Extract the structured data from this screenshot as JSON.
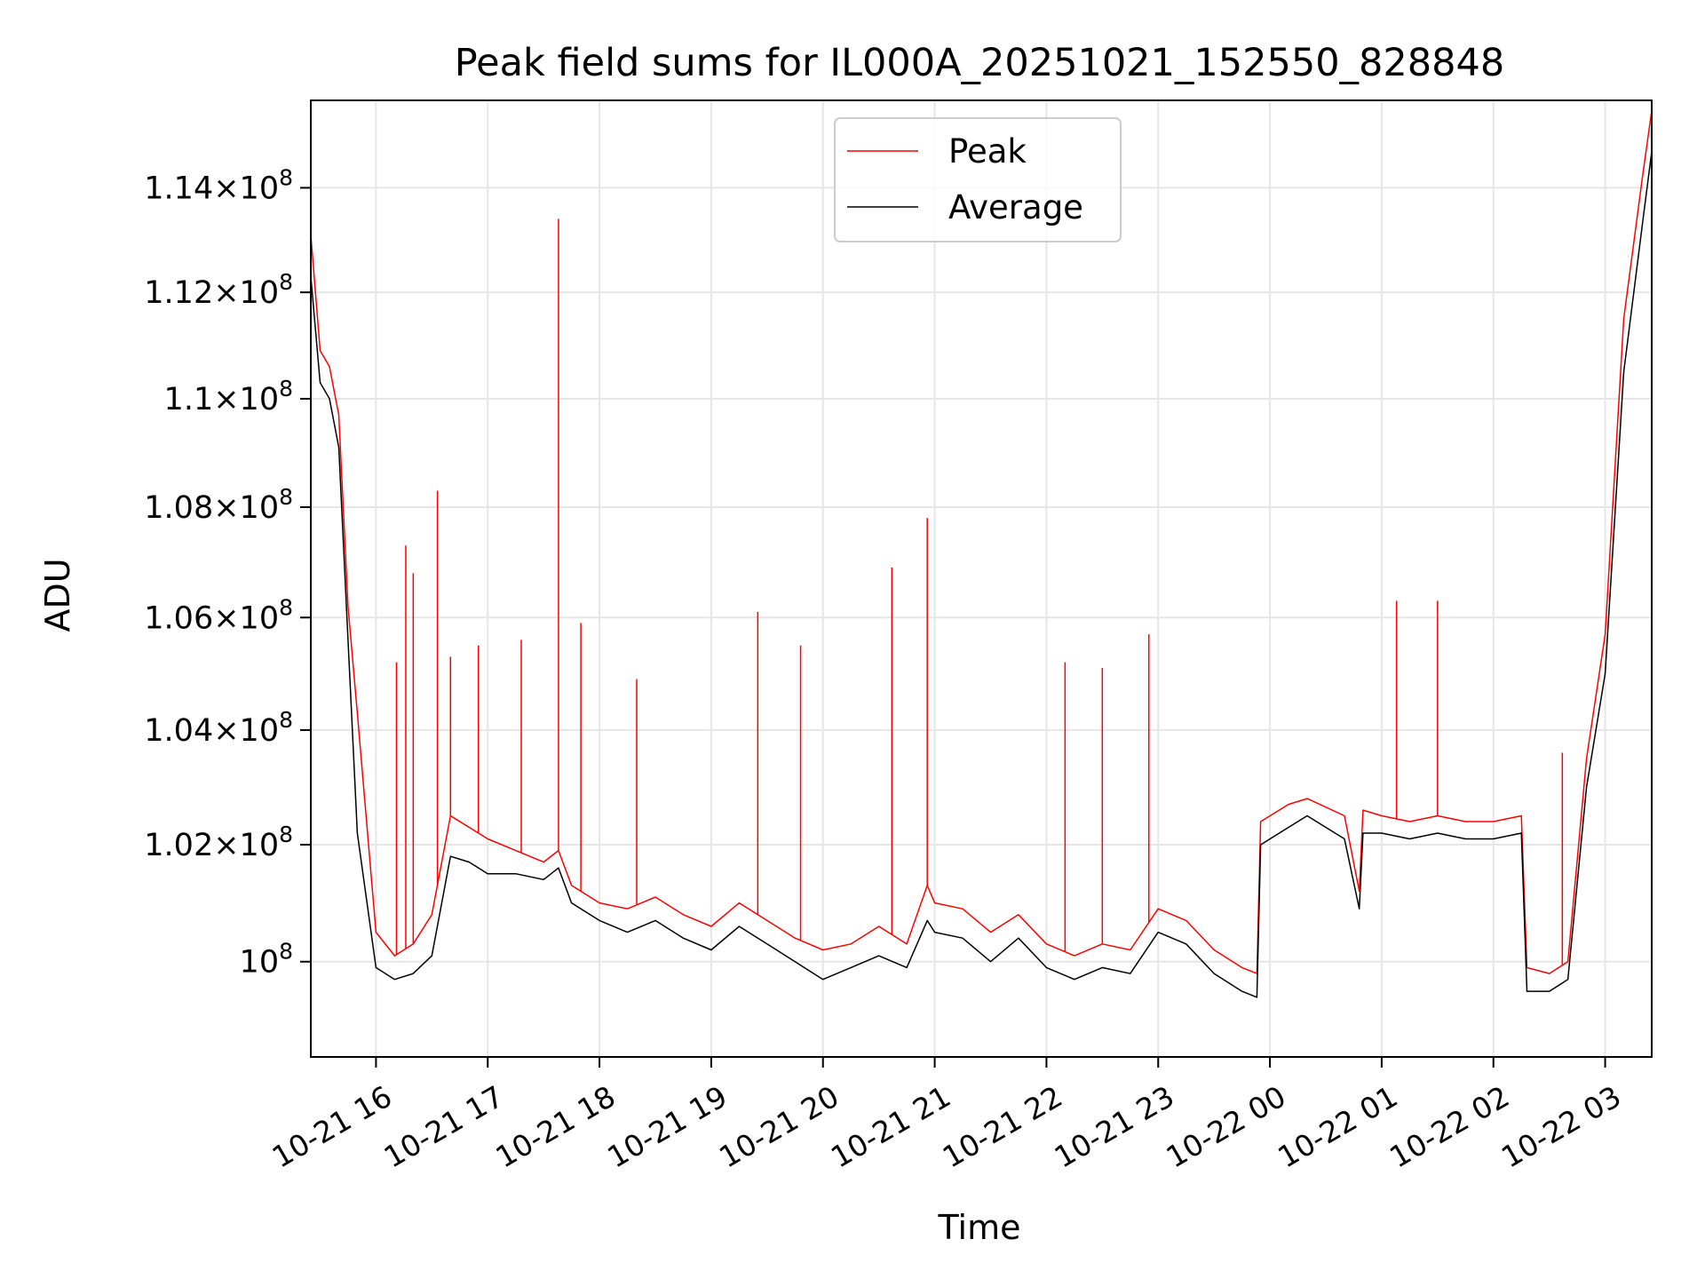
{
  "chart_data": {
    "type": "line",
    "title": "Peak field sums for IL000A_20251021_152550_828848",
    "xlabel": "Time",
    "ylabel": "ADU",
    "x_ticks": [
      "10-21 16",
      "10-21 17",
      "10-21 18",
      "10-21 19",
      "10-21 20",
      "10-21 21",
      "10-21 22",
      "10-21 23",
      "10-22 00",
      "10-22 01",
      "10-22 02",
      "10-22 03"
    ],
    "x_tick_times": [
      "2025-10-21T16:00",
      "2025-10-21T17:00",
      "2025-10-21T18:00",
      "2025-10-21T19:00",
      "2025-10-21T20:00",
      "2025-10-21T21:00",
      "2025-10-21T22:00",
      "2025-10-21T23:00",
      "2025-10-22T00:00",
      "2025-10-22T01:00",
      "2025-10-22T02:00",
      "2025-10-22T03:00"
    ],
    "xlim": [
      "2025-10-21T15:25",
      "2025-10-22T03:25"
    ],
    "y_ticks": [
      {
        "value": 100000000,
        "base": "10",
        "exp": "8",
        "mant": ""
      },
      {
        "value": 102000000,
        "base": "10",
        "exp": "8",
        "mant": "1.02×"
      },
      {
        "value": 104000000,
        "base": "10",
        "exp": "8",
        "mant": "1.04×"
      },
      {
        "value": 106000000,
        "base": "10",
        "exp": "8",
        "mant": "1.06×"
      },
      {
        "value": 108000000,
        "base": "10",
        "exp": "8",
        "mant": "1.08×"
      },
      {
        "value": 110000000,
        "base": "10",
        "exp": "8",
        "mant": "1.1×"
      },
      {
        "value": 112000000,
        "base": "10",
        "exp": "8",
        "mant": "1.12×"
      },
      {
        "value": 114000000,
        "base": "10",
        "exp": "8",
        "mant": "1.14×"
      }
    ],
    "ylim": [
      98400000,
      115700000
    ],
    "yscale": "log",
    "grid": true,
    "legend_position": "upper center",
    "series": [
      {
        "name": "Peak",
        "color": "#ff0000",
        "x": [
          "2025-10-21T15:25",
          "2025-10-21T15:30",
          "2025-10-21T15:35",
          "2025-10-21T15:40",
          "2025-10-21T15:45",
          "2025-10-21T15:50",
          "2025-10-21T16:00",
          "2025-10-21T16:10",
          "2025-10-21T16:20",
          "2025-10-21T16:30",
          "2025-10-21T16:40",
          "2025-10-21T16:50",
          "2025-10-21T17:00",
          "2025-10-21T17:15",
          "2025-10-21T17:30",
          "2025-10-21T17:38",
          "2025-10-21T17:45",
          "2025-10-21T18:00",
          "2025-10-21T18:15",
          "2025-10-21T18:30",
          "2025-10-21T18:45",
          "2025-10-21T19:00",
          "2025-10-21T19:15",
          "2025-10-21T19:30",
          "2025-10-21T19:45",
          "2025-10-21T20:00",
          "2025-10-21T20:15",
          "2025-10-21T20:30",
          "2025-10-21T20:45",
          "2025-10-21T20:56",
          "2025-10-21T21:00",
          "2025-10-21T21:15",
          "2025-10-21T21:30",
          "2025-10-21T21:45",
          "2025-10-21T22:00",
          "2025-10-21T22:15",
          "2025-10-21T22:30",
          "2025-10-21T22:45",
          "2025-10-21T23:00",
          "2025-10-21T23:15",
          "2025-10-21T23:30",
          "2025-10-21T23:45",
          "2025-10-21T23:53",
          "2025-10-21T23:55",
          "2025-10-22T00:10",
          "2025-10-22T00:20",
          "2025-10-22T00:40",
          "2025-10-22T00:48",
          "2025-10-22T00:50",
          "2025-10-22T01:00",
          "2025-10-22T01:15",
          "2025-10-22T01:30",
          "2025-10-22T01:45",
          "2025-10-22T02:00",
          "2025-10-22T02:15",
          "2025-10-22T02:18",
          "2025-10-22T02:30",
          "2025-10-22T02:40",
          "2025-10-22T02:50",
          "2025-10-22T03:00",
          "2025-10-22T03:10",
          "2025-10-22T03:20",
          "2025-10-22T03:25"
        ],
        "y": [
          113100000,
          110900000,
          110600000,
          109700000,
          106200000,
          104300000,
          100500000,
          100100000,
          100300000,
          100800000,
          102500000,
          102300000,
          102100000,
          101900000,
          101700000,
          101900000,
          101300000,
          101000000,
          100900000,
          101100000,
          100800000,
          100600000,
          101000000,
          100700000,
          100400000,
          100200000,
          100300000,
          100600000,
          100300000,
          101300000,
          101000000,
          100900000,
          100500000,
          100800000,
          100300000,
          100100000,
          100300000,
          100200000,
          100900000,
          100700000,
          100200000,
          99900000,
          99800000,
          102400000,
          102700000,
          102800000,
          102500000,
          101200000,
          102600000,
          102500000,
          102400000,
          102500000,
          102400000,
          102400000,
          102500000,
          99900000,
          99800000,
          100000000,
          103500000,
          105700000,
          111500000,
          114200000,
          115500000
        ],
        "spikes": [
          {
            "x": "2025-10-21T16:11",
            "y": 105200000
          },
          {
            "x": "2025-10-21T16:16",
            "y": 107300000
          },
          {
            "x": "2025-10-21T16:20",
            "y": 106800000
          },
          {
            "x": "2025-10-21T16:33",
            "y": 108300000
          },
          {
            "x": "2025-10-21T16:40",
            "y": 105300000
          },
          {
            "x": "2025-10-21T16:55",
            "y": 105500000
          },
          {
            "x": "2025-10-21T17:18",
            "y": 105600000
          },
          {
            "x": "2025-10-21T17:38",
            "y": 113400000
          },
          {
            "x": "2025-10-21T17:50",
            "y": 105900000
          },
          {
            "x": "2025-10-21T18:20",
            "y": 104900000
          },
          {
            "x": "2025-10-21T19:25",
            "y": 106100000
          },
          {
            "x": "2025-10-21T19:48",
            "y": 105500000
          },
          {
            "x": "2025-10-21T20:37",
            "y": 106900000
          },
          {
            "x": "2025-10-21T20:56",
            "y": 107800000
          },
          {
            "x": "2025-10-21T22:10",
            "y": 105200000
          },
          {
            "x": "2025-10-21T22:30",
            "y": 105100000
          },
          {
            "x": "2025-10-21T22:55",
            "y": 105700000
          },
          {
            "x": "2025-10-22T01:08",
            "y": 106300000
          },
          {
            "x": "2025-10-22T01:30",
            "y": 106300000
          },
          {
            "x": "2025-10-22T02:37",
            "y": 103600000
          }
        ]
      },
      {
        "name": "Average",
        "color": "#000000",
        "x": [
          "2025-10-21T15:25",
          "2025-10-21T15:30",
          "2025-10-21T15:35",
          "2025-10-21T15:40",
          "2025-10-21T15:45",
          "2025-10-21T15:50",
          "2025-10-21T16:00",
          "2025-10-21T16:10",
          "2025-10-21T16:20",
          "2025-10-21T16:30",
          "2025-10-21T16:40",
          "2025-10-21T16:50",
          "2025-10-21T17:00",
          "2025-10-21T17:15",
          "2025-10-21T17:30",
          "2025-10-21T17:38",
          "2025-10-21T17:45",
          "2025-10-21T18:00",
          "2025-10-21T18:15",
          "2025-10-21T18:30",
          "2025-10-21T18:45",
          "2025-10-21T19:00",
          "2025-10-21T19:15",
          "2025-10-21T19:30",
          "2025-10-21T19:45",
          "2025-10-21T20:00",
          "2025-10-21T20:15",
          "2025-10-21T20:30",
          "2025-10-21T20:45",
          "2025-10-21T20:56",
          "2025-10-21T21:00",
          "2025-10-21T21:15",
          "2025-10-21T21:30",
          "2025-10-21T21:45",
          "2025-10-21T22:00",
          "2025-10-21T22:15",
          "2025-10-21T22:30",
          "2025-10-21T22:45",
          "2025-10-21T23:00",
          "2025-10-21T23:15",
          "2025-10-21T23:30",
          "2025-10-21T23:45",
          "2025-10-21T23:53",
          "2025-10-21T23:55",
          "2025-10-22T00:10",
          "2025-10-22T00:20",
          "2025-10-22T00:40",
          "2025-10-22T00:48",
          "2025-10-22T00:50",
          "2025-10-22T01:00",
          "2025-10-22T01:15",
          "2025-10-22T01:30",
          "2025-10-22T01:45",
          "2025-10-22T02:00",
          "2025-10-22T02:15",
          "2025-10-22T02:18",
          "2025-10-22T02:30",
          "2025-10-22T02:40",
          "2025-10-22T02:50",
          "2025-10-22T03:00",
          "2025-10-22T03:10",
          "2025-10-22T03:20",
          "2025-10-22T03:25"
        ],
        "y": [
          112300000,
          110300000,
          110000000,
          109100000,
          105600000,
          102200000,
          99900000,
          99700000,
          99800000,
          100100000,
          101800000,
          101700000,
          101500000,
          101500000,
          101400000,
          101600000,
          101000000,
          100700000,
          100500000,
          100700000,
          100400000,
          100200000,
          100600000,
          100300000,
          100000000,
          99700000,
          99900000,
          100100000,
          99900000,
          100700000,
          100500000,
          100400000,
          100000000,
          100400000,
          99900000,
          99700000,
          99900000,
          99800000,
          100500000,
          100300000,
          99800000,
          99500000,
          99400000,
          102000000,
          102300000,
          102500000,
          102100000,
          100900000,
          102200000,
          102200000,
          102100000,
          102200000,
          102100000,
          102100000,
          102200000,
          99500000,
          99500000,
          99700000,
          103000000,
          105000000,
          110500000,
          113300000,
          114700000
        ]
      }
    ]
  }
}
